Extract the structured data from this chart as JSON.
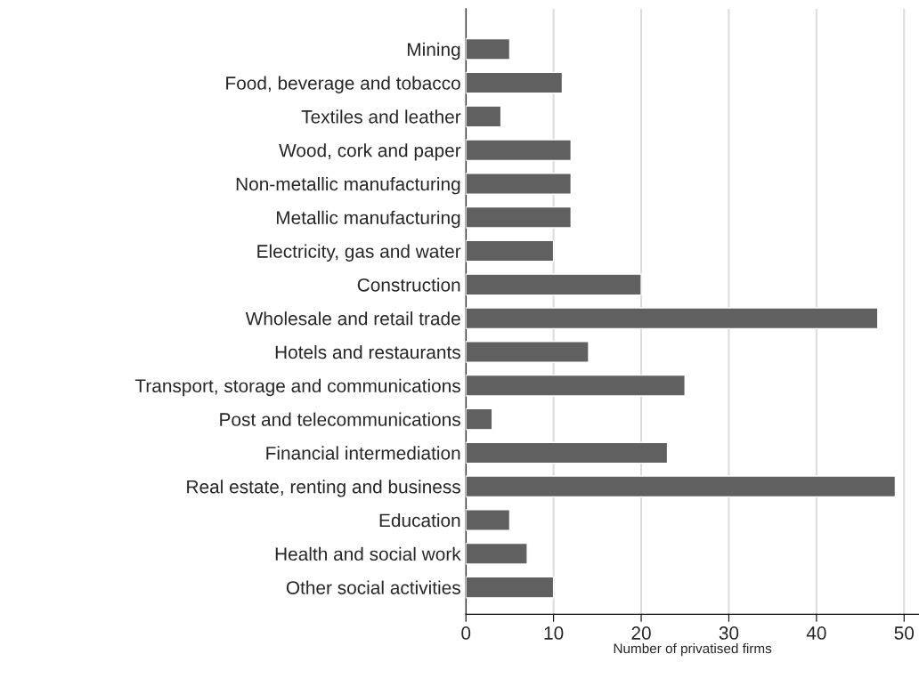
{
  "chart_data": {
    "type": "bar",
    "orientation": "horizontal",
    "xlabel": "Number of privatised firms",
    "categories": [
      "Mining",
      "Food, beverage and tobacco",
      "Textiles and leather",
      "Wood, cork and paper",
      "Non-metallic manufacturing",
      "Metallic manufacturing",
      "Electricity, gas and water",
      "Construction",
      "Wholesale and retail trade",
      "Hotels and restaurants",
      "Transport, storage and communications",
      "Post and telecommunications",
      "Financial intermediation",
      "Real estate, renting and business",
      "Education",
      "Health and social work",
      "Other social activities"
    ],
    "values": [
      5,
      11,
      4,
      12,
      12,
      12,
      10,
      20,
      47,
      14,
      25,
      3,
      23,
      49,
      5,
      7,
      10
    ],
    "color": "#606060",
    "xlim": [
      0,
      51.7
    ],
    "xticks": [
      0,
      10,
      20,
      30,
      40,
      50
    ],
    "grid": "x"
  }
}
